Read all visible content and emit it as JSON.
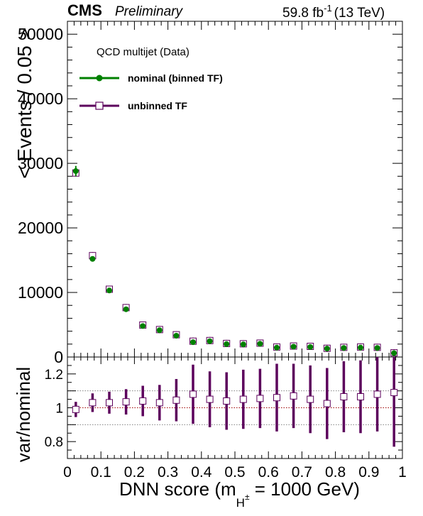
{
  "header": {
    "cms": "CMS",
    "preliminary": "Preliminary",
    "lumi_value": "59.8 fb",
    "lumi_exp": "-1",
    "energy": "(13 TeV)"
  },
  "legend": {
    "title": "QCD multijet (Data)",
    "entries": [
      "nominal (binned TF)",
      "unbinned TF"
    ]
  },
  "colors": {
    "nominal": "#008000",
    "unbinned": "#5c005c",
    "ratio_line": "#9c0000",
    "ratio_band": "#808080"
  },
  "chart_data": [
    {
      "type": "scatter",
      "ylabel": "< Events / 0.05 >",
      "xlim": [
        0,
        1
      ],
      "ylim": [
        0,
        52000
      ],
      "y_ticks": [
        0,
        10000,
        20000,
        30000,
        40000,
        50000
      ],
      "y_tick_labels": [
        "0",
        "10000",
        "20000",
        "30000",
        "40000",
        "50000"
      ],
      "x": [
        0.025,
        0.075,
        0.125,
        0.175,
        0.225,
        0.275,
        0.325,
        0.375,
        0.425,
        0.475,
        0.525,
        0.575,
        0.625,
        0.675,
        0.725,
        0.775,
        0.825,
        0.875,
        0.925,
        0.975
      ],
      "series": [
        {
          "name": "nominal (binned TF)",
          "marker": "filled-circle",
          "values": [
            28800,
            15200,
            10300,
            7400,
            4800,
            4150,
            3300,
            2300,
            2450,
            2000,
            1950,
            2050,
            1450,
            1600,
            1550,
            1300,
            1400,
            1450,
            1400,
            600
          ],
          "errors": [
            800,
            400,
            300,
            250,
            200,
            180,
            160,
            150,
            150,
            140,
            140,
            140,
            120,
            130,
            130,
            120,
            120,
            130,
            130,
            100
          ]
        },
        {
          "name": "unbinned TF",
          "marker": "open-square",
          "values": [
            28500,
            15700,
            10500,
            7650,
            4950,
            4250,
            3450,
            2450,
            2550,
            2100,
            2050,
            2150,
            1550,
            1700,
            1650,
            1350,
            1500,
            1550,
            1500,
            650
          ]
        }
      ]
    },
    {
      "type": "scatter",
      "xlabel": "DNN score (m",
      "xlabel_sub": "H",
      "xlabel_sup": "±",
      "xlabel_tail": " = 1000 GeV)",
      "ylabel": "var/nominal",
      "xlim": [
        0,
        1
      ],
      "ylim": [
        0.7,
        1.3
      ],
      "x_ticks": [
        0,
        0.1,
        0.2,
        0.3,
        0.4,
        0.5,
        0.6,
        0.7,
        0.8,
        0.9,
        1
      ],
      "x_tick_labels": [
        "0",
        "0.1",
        "0.2",
        "0.3",
        "0.4",
        "0.5",
        "0.6",
        "0.7",
        "0.8",
        "0.9",
        "1"
      ],
      "y_ticks": [
        0.8,
        1,
        1.2
      ],
      "y_tick_labels": [
        "0.8",
        "1",
        "1.2"
      ],
      "reference_lines": [
        0.9,
        1.0,
        1.1
      ],
      "x": [
        0.025,
        0.075,
        0.125,
        0.175,
        0.225,
        0.275,
        0.325,
        0.375,
        0.425,
        0.475,
        0.525,
        0.575,
        0.625,
        0.675,
        0.725,
        0.775,
        0.825,
        0.875,
        0.925,
        0.975
      ],
      "series": [
        {
          "name": "unbinned TF",
          "marker": "open-square",
          "values": [
            0.99,
            1.03,
            1.03,
            1.035,
            1.04,
            1.03,
            1.045,
            1.08,
            1.05,
            1.04,
            1.05,
            1.055,
            1.06,
            1.07,
            1.05,
            1.025,
            1.065,
            1.065,
            1.08,
            1.09
          ],
          "errors": [
            0.045,
            0.055,
            0.065,
            0.075,
            0.09,
            0.105,
            0.125,
            0.175,
            0.165,
            0.17,
            0.175,
            0.175,
            0.2,
            0.19,
            0.2,
            0.21,
            0.21,
            0.215,
            0.22,
            0.32
          ]
        }
      ]
    }
  ]
}
